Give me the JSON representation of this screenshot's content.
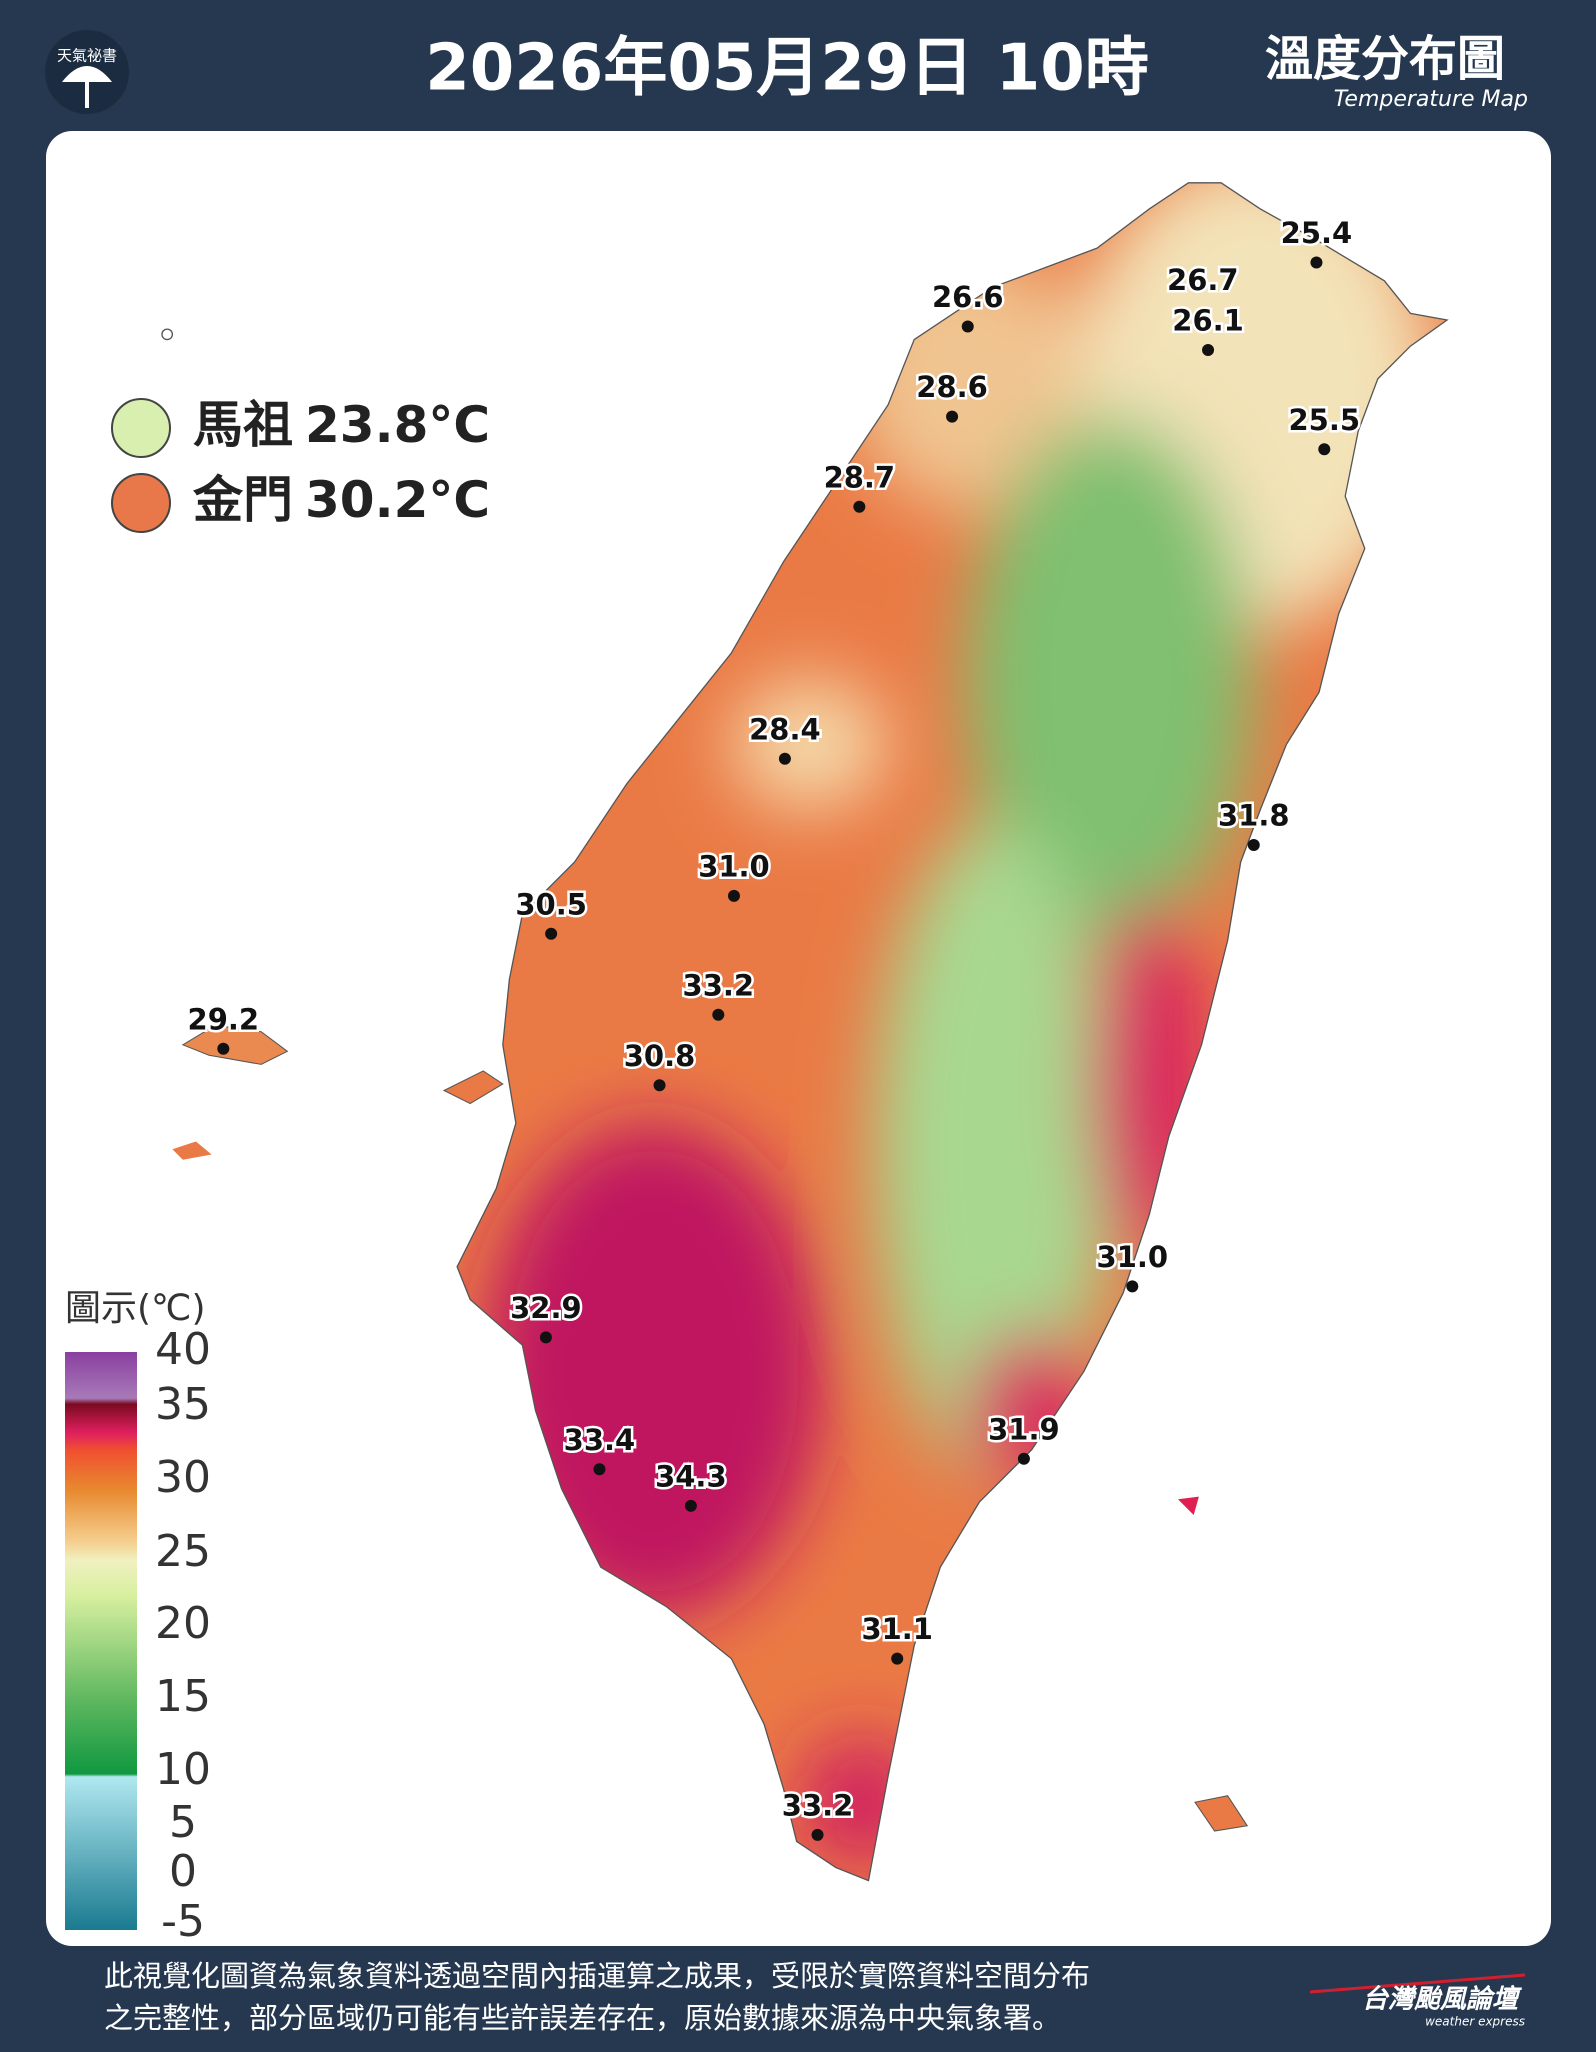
{
  "header": {
    "logo": "天氣祕書",
    "title": "2026年05月29日 10時",
    "map_title": "溫度分布圖",
    "map_subtitle": "Temperature Map"
  },
  "islands": [
    {
      "name": "馬祖",
      "value": "23.8°C",
      "color": "#d8efb0"
    },
    {
      "name": "金門",
      "value": "30.2°C",
      "color": "#e8784a"
    }
  ],
  "stations": [
    "25.4",
    "26.7",
    "26.1",
    "26.6",
    "28.6",
    "25.5",
    "28.7",
    "28.4",
    "31.8",
    "31.0",
    "30.5",
    "33.2",
    "29.2",
    "30.8",
    "31.0",
    "32.9",
    "31.9",
    "33.4",
    "34.3",
    "31.1",
    "33.2"
  ],
  "legend": {
    "title": "圖示(℃)",
    "ticks": [
      "40",
      "35",
      "30",
      "25",
      "20",
      "15",
      "10",
      "5",
      "0",
      "-5"
    ]
  },
  "footer": {
    "lines": [
      "此視覺化圖資為氣象資料透過空間內插運算之成果，受限於實際資料空間分布",
      "之完整性，部分區域仍可能有些許誤差存在，原始數據來源為中央氣象署。"
    ],
    "brand": "台灣颱風論壇",
    "brand_sub": "weather express"
  }
}
